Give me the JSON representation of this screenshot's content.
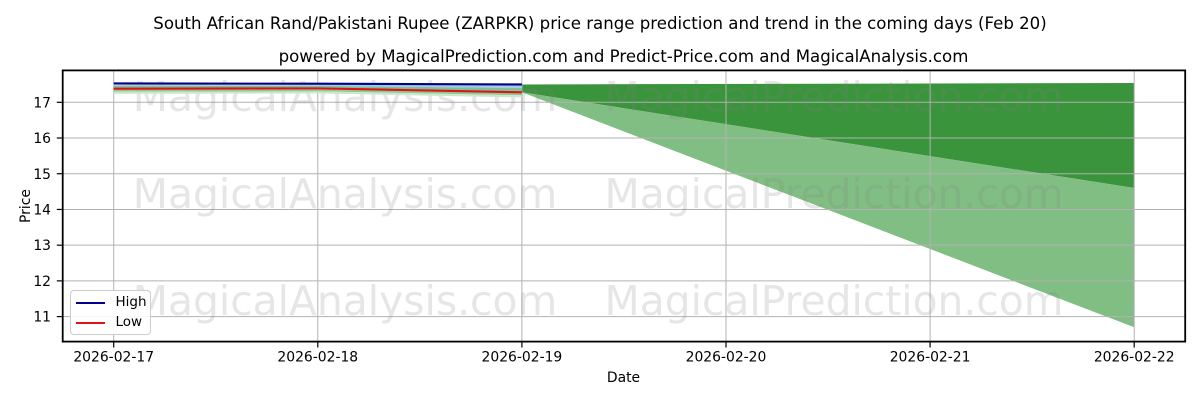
{
  "title": "South African Rand/Pakistani Rupee (ZARPKR) price range prediction and trend in the coming days (Feb 20)",
  "subtitle": "powered by MagicalPrediction.com and Predict-Price.com and MagicalAnalysis.com",
  "watermark": {
    "left_text": "MagicalAnalysis.com",
    "right_text": "MagicalPrediction.com",
    "color": "#808080",
    "opacity": 0.2
  },
  "axes": {
    "x_label": "Date",
    "y_label": "Price",
    "x_ticks": [
      "2026-02-17",
      "2026-02-18",
      "2026-02-19",
      "2026-02-20",
      "2026-02-21",
      "2026-02-22"
    ],
    "y_ticks": [
      11,
      12,
      13,
      14,
      15,
      16,
      17
    ],
    "grid_color": "#b2b2b2",
    "spine_color": "#000000",
    "tick_label_color": "#000000"
  },
  "legend": {
    "items": [
      {
        "label": "High",
        "color": "#00008b"
      },
      {
        "label": "Low",
        "color": "#e51212"
      }
    ]
  },
  "colors": {
    "high_line": "#00008b",
    "low_line": "#e51212",
    "forecast_upper_band": "#3a943c",
    "forecast_lower_band": "#81be83",
    "historical_fill_top": "#a5cce3",
    "historical_fill_bottom": "#7cc0a0",
    "historical_under_strip": "#8fca94",
    "historical_under_fade": "#cbe8cf",
    "background": "#ffffff"
  },
  "chart_data": {
    "type": "line",
    "title": "South African Rand/Pakistani Rupee (ZARPKR) price range prediction and trend in the coming days (Feb 20)",
    "subtitle": "powered by MagicalPrediction.com and Predict-Price.com and MagicalAnalysis.com",
    "xlabel": "Date",
    "ylabel": "Price",
    "x": [
      "2026-02-17",
      "2026-02-18",
      "2026-02-19",
      "2026-02-20",
      "2026-02-21",
      "2026-02-22"
    ],
    "ylim": [
      10.3,
      17.9
    ],
    "grid": true,
    "legend_position": "lower left",
    "series": [
      {
        "name": "High",
        "x": [
          "2026-02-17",
          "2026-02-18",
          "2026-02-19"
        ],
        "values": [
          17.53,
          17.52,
          17.5
        ]
      },
      {
        "name": "Low",
        "x": [
          "2026-02-17",
          "2026-02-18",
          "2026-02-19"
        ],
        "values": [
          17.38,
          17.39,
          17.28
        ]
      }
    ],
    "bands": [
      {
        "name": "historical-high-low-range",
        "x": [
          "2026-02-17",
          "2026-02-18",
          "2026-02-19"
        ],
        "upper": [
          17.53,
          17.52,
          17.5
        ],
        "lower": [
          17.38,
          17.39,
          17.28
        ]
      },
      {
        "name": "forecast-upper-band",
        "x": [
          "2026-02-19",
          "2026-02-22"
        ],
        "upper": [
          17.5,
          17.54
        ],
        "lower": [
          17.28,
          14.6
        ]
      },
      {
        "name": "forecast-lower-band",
        "x": [
          "2026-02-19",
          "2026-02-22"
        ],
        "upper": [
          17.28,
          14.6
        ],
        "lower": [
          17.28,
          10.7
        ]
      }
    ]
  }
}
